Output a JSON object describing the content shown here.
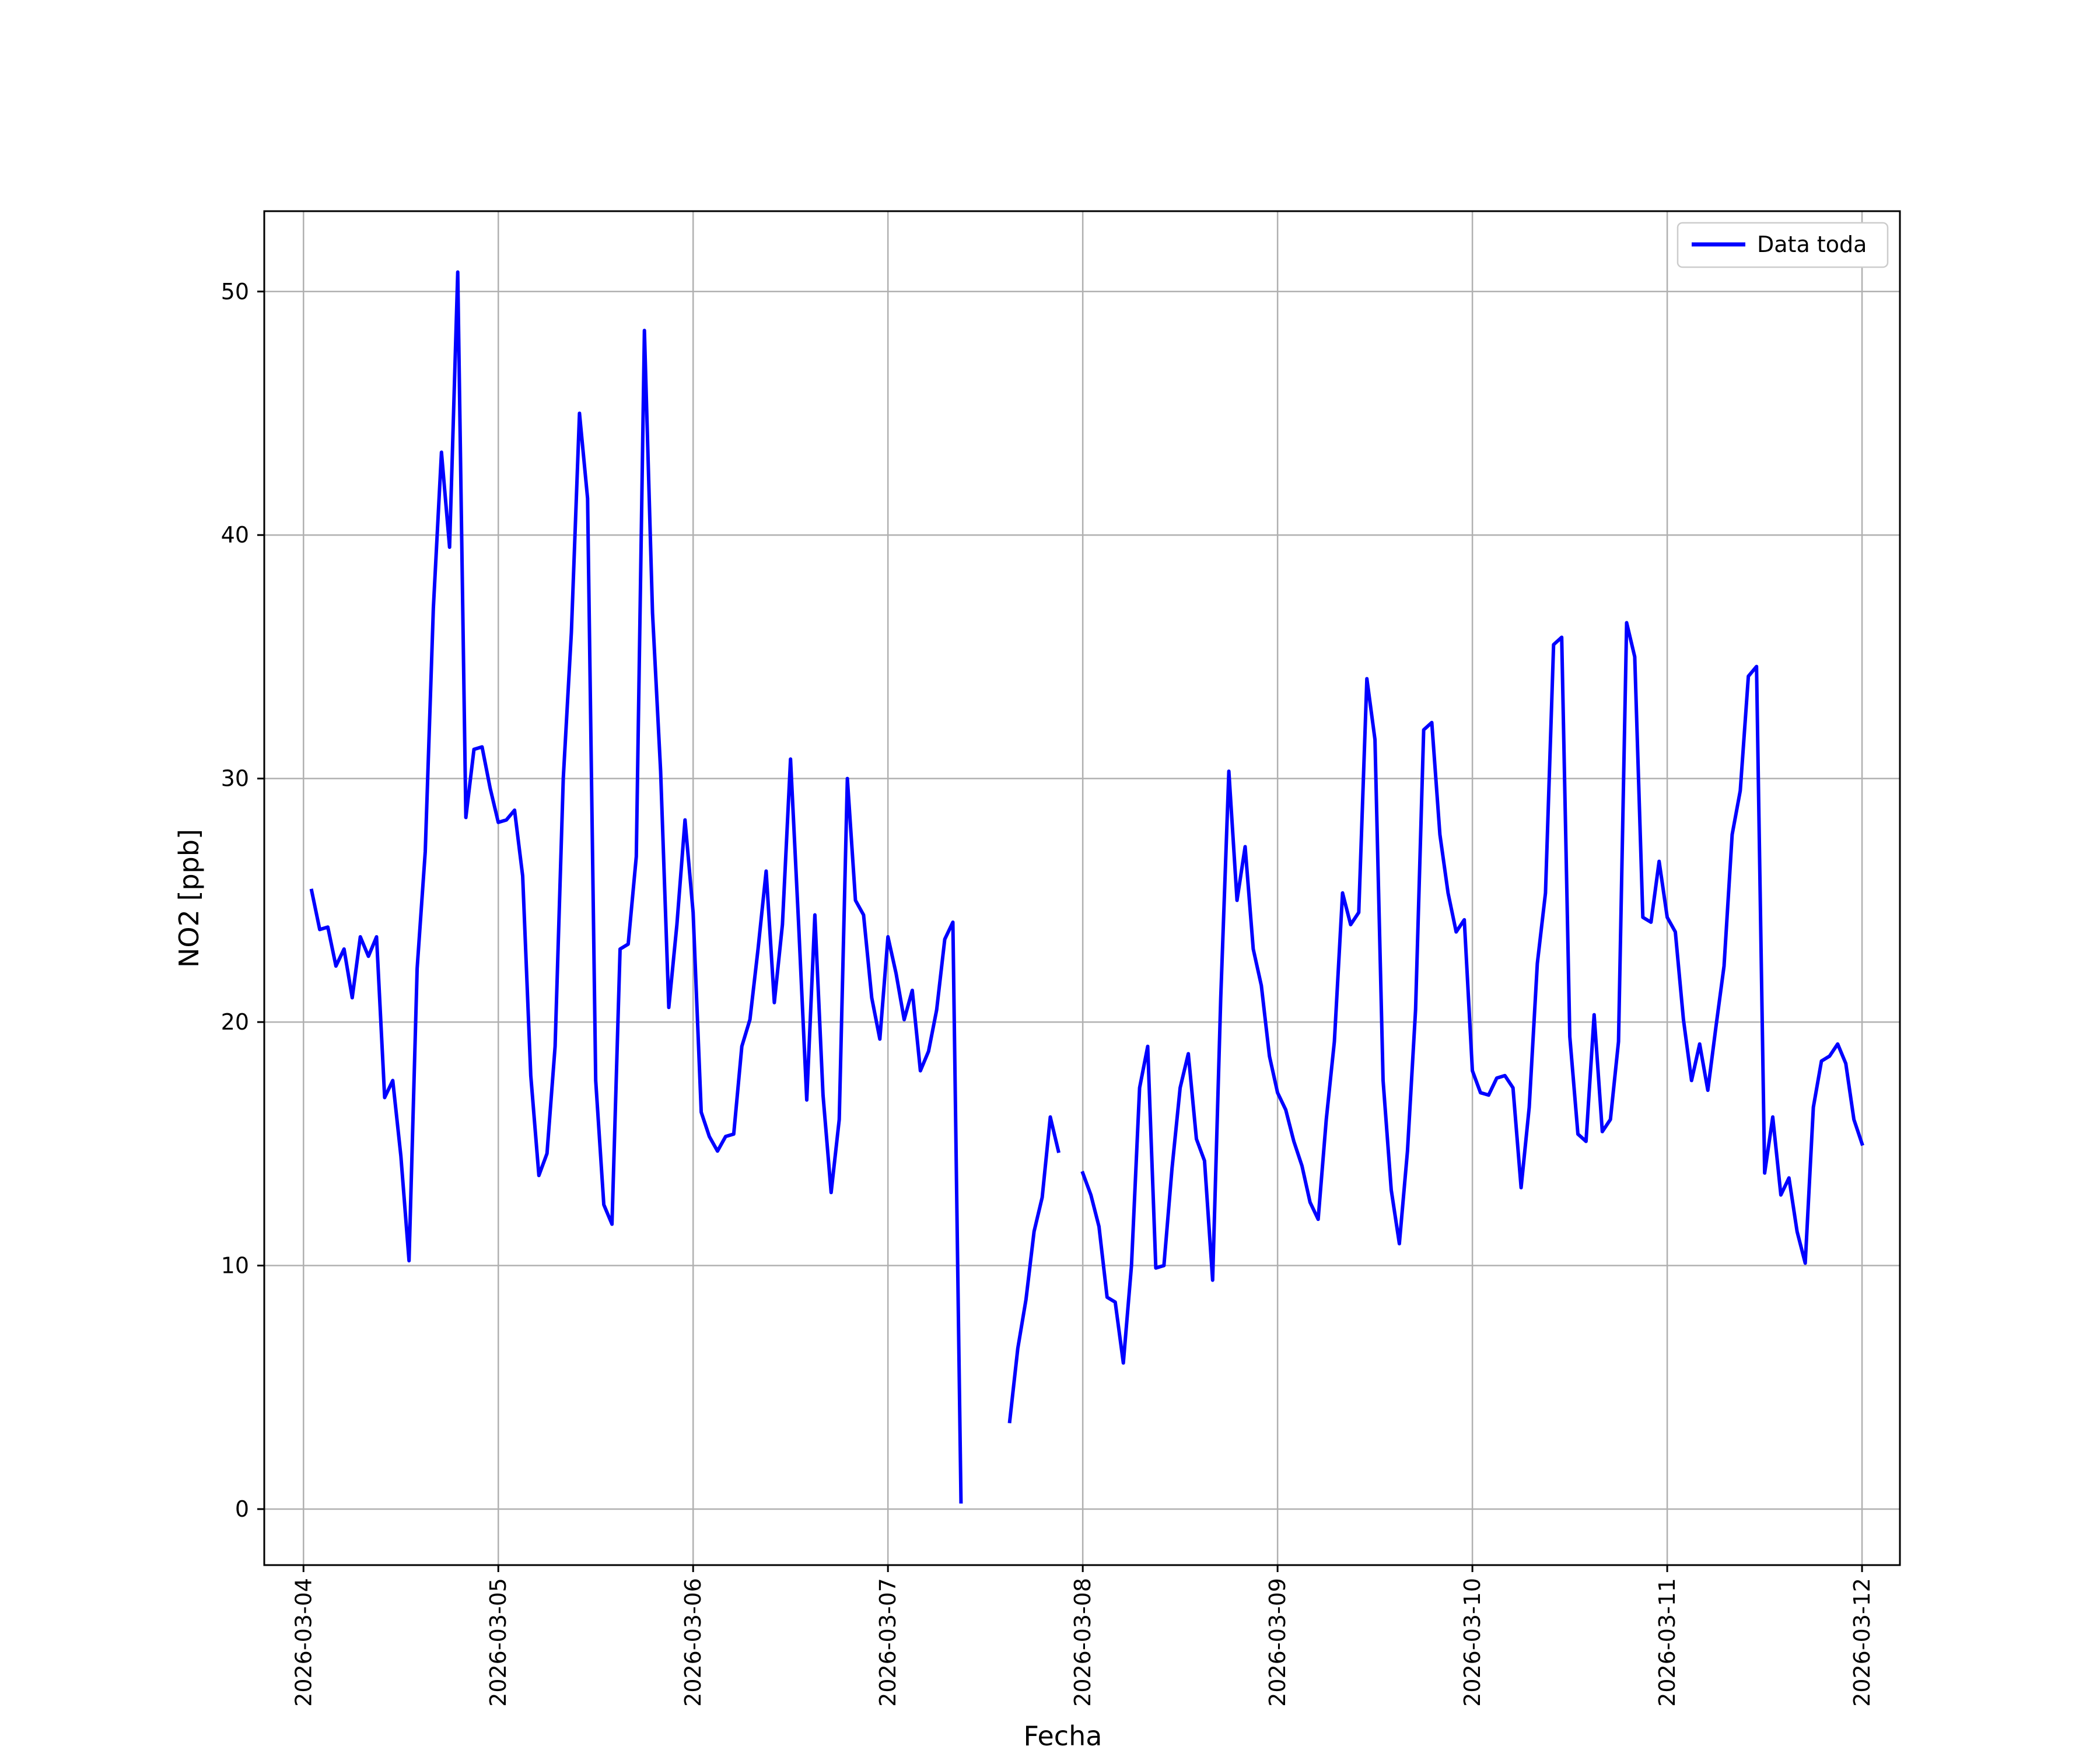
{
  "chart_data": {
    "type": "line",
    "title": "",
    "xlabel": "Fecha",
    "ylabel": "NO2 [ppb]",
    "ylim": [
      -2.3,
      53.3
    ],
    "xlim": [
      "2026-03-03T19:10",
      "2026-03-12T04:40"
    ],
    "grid": true,
    "legend_position": "top-right",
    "x_ticks": [
      "2026-03-04",
      "2026-03-05",
      "2026-03-06",
      "2026-03-07",
      "2026-03-08",
      "2026-03-09",
      "2026-03-10",
      "2026-03-11",
      "2026-03-12"
    ],
    "y_ticks": [
      0,
      10,
      20,
      30,
      40,
      50
    ],
    "series": [
      {
        "name": "Data toda",
        "color": "#0000ff",
        "segments": [
          {
            "start": "2026-03-04T01:00",
            "step_hours": 1,
            "values": [
              25.4,
              23.8,
              23.9,
              22.3,
              23.0,
              21.0,
              23.5,
              22.7,
              23.5,
              16.9,
              17.6,
              14.5,
              10.2,
              22.2,
              27.0,
              37.0,
              43.4,
              39.5,
              50.8,
              28.4,
              31.2,
              31.3,
              29.6,
              28.2,
              28.3,
              28.7,
              26.0,
              17.8,
              13.7,
              14.6,
              19.0,
              30.0,
              36.0,
              45.0,
              41.5,
              17.6,
              12.5,
              11.7,
              23.0,
              23.2,
              26.8,
              48.4,
              36.8,
              30.3,
              20.6,
              24.0,
              28.3,
              24.5,
              16.3,
              15.3,
              14.7,
              15.3,
              15.4,
              19.0,
              20.1,
              23.0,
              26.2,
              20.8,
              24.0,
              30.8,
              24.0,
              16.8,
              24.4,
              17.0,
              13.0,
              16.0,
              30.0,
              25.0,
              24.4,
              21.0,
              19.3,
              23.5,
              22.0,
              20.1,
              21.3,
              18.0,
              18.8,
              20.5,
              23.4,
              24.1,
              0.3
            ]
          },
          {
            "start": "2026-03-07T15:00",
            "step_hours": 1,
            "values": [
              3.6,
              6.6,
              8.6,
              11.4,
              12.8,
              16.1,
              14.7
            ]
          },
          {
            "start": "2026-03-08T00:00",
            "step_hours": 1,
            "values": [
              13.8,
              12.9,
              11.6,
              8.7,
              8.5,
              6.0,
              10.0,
              17.3,
              19.0,
              9.9,
              10.0,
              14.0,
              17.3,
              18.7,
              15.2,
              14.3,
              9.4,
              21.0,
              30.3,
              25.0,
              27.2,
              23.0,
              21.5,
              18.6,
              17.1,
              16.4,
              15.1,
              14.1,
              12.6,
              11.9,
              16.0,
              19.2,
              25.3,
              24.0,
              24.5,
              34.1,
              31.6,
              17.6,
              13.1,
              10.9,
              14.7,
              20.5,
              32.0,
              32.3,
              27.7,
              25.3,
              23.7,
              24.2,
              18.0,
              17.1,
              17.0,
              17.7,
              17.8,
              17.3,
              13.2,
              16.5,
              22.4,
              25.3,
              35.5,
              35.8,
              19.4,
              15.4,
              15.1,
              20.3,
              15.5,
              16.0,
              19.2,
              36.4,
              35.0,
              24.3,
              24.1,
              26.6,
              24.3,
              23.7,
              20.1,
              17.6,
              19.1,
              17.2,
              19.8,
              22.3,
              27.7,
              29.5,
              34.2,
              34.6,
              13.8,
              16.1,
              12.9,
              13.6,
              11.4,
              10.1,
              16.5,
              18.4,
              18.6,
              19.1,
              18.3,
              16.0,
              15.0
            ]
          }
        ]
      }
    ]
  }
}
